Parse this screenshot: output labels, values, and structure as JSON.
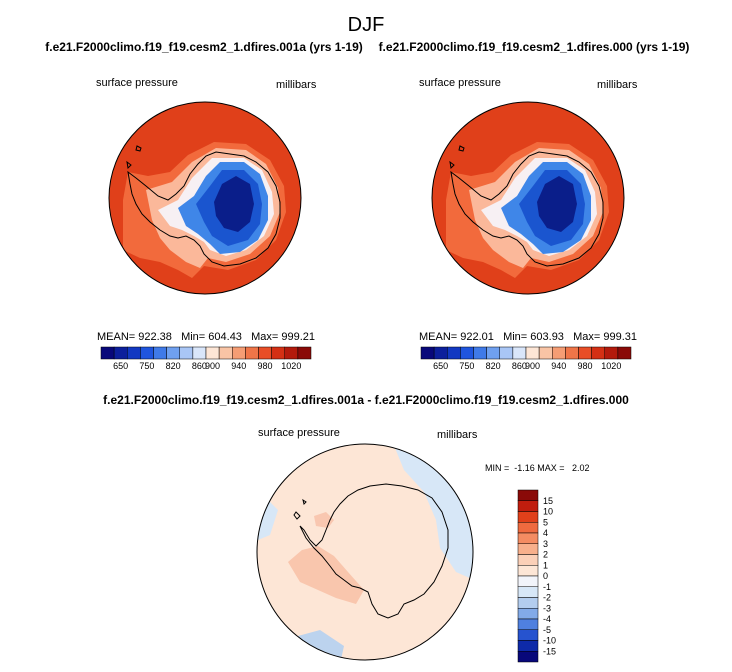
{
  "title": "DJF",
  "panels": [
    {
      "title": "f.e21.F2000climo.f19_f19.cesm2_1.dfires.001a (yrs 1-19)",
      "left_label": "surface pressure",
      "right_label": "millibars",
      "stats": "MEAN= 922.38   Min= 604.43   Max= 999.21"
    },
    {
      "title": "f.e21.F2000climo.f19_f19.cesm2_1.dfires.000 (yrs 1-19)",
      "left_label": "surface pressure",
      "right_label": "millibars",
      "stats": "MEAN= 922.01   Min= 603.93   Max= 999.31"
    },
    {
      "title": "f.e21.F2000climo.f19_f19.cesm2_1.dfires.001a - f.e21.F2000climo.f19_f19.cesm2_1.dfires.000",
      "left_label": "surface pressure",
      "right_label": "millibars",
      "stats": "MIN =  -1.16 MAX =   2.02"
    }
  ],
  "colors": {
    "ocean_pressure": "#e0401a",
    "coast_band": "#f26a3c",
    "inland_band": "#fbb89a",
    "ice_shelf": "#f7f0f3",
    "plateau_low": "#3f86e8",
    "plateau_mid": "#1a55cf",
    "plateau_deep": "#0a1e8a",
    "diff_base": "#fde6d6",
    "diff_pos": "#f8bfa6",
    "diff_neg": "#d7e7f7",
    "diff_neg2": "#bcd3ee"
  },
  "chart_data": [
    {
      "type": "heatmap",
      "title": "f.e21.F2000climo.f19_f19.cesm2_1.dfires.001a (yrs 1-19)",
      "variable": "surface pressure",
      "units": "millibars",
      "mean": 922.38,
      "min": 604.43,
      "max": 999.21,
      "colorbar_labels": [
        "650",
        "750",
        "820",
        "860",
        "900",
        "940",
        "980",
        "1020"
      ],
      "colorbar_colors": [
        "#08087a",
        "#0c1f9c",
        "#1238c2",
        "#1f55de",
        "#3f7ae8",
        "#6fa0f0",
        "#a9c6f6",
        "#d9e6fa",
        "#fde6d6",
        "#f9c4a5",
        "#f59d74",
        "#ef7548",
        "#e84e27",
        "#d43014",
        "#b31a0c",
        "#8a0a08"
      ]
    },
    {
      "type": "heatmap",
      "title": "f.e21.F2000climo.f19_f19.cesm2_1.dfires.000 (yrs 1-19)",
      "variable": "surface pressure",
      "units": "millibars",
      "mean": 922.01,
      "min": 603.93,
      "max": 999.31,
      "colorbar_labels": [
        "650",
        "750",
        "820",
        "860",
        "900",
        "940",
        "980",
        "1020"
      ],
      "colorbar_colors": [
        "#08087a",
        "#0c1f9c",
        "#1238c2",
        "#1f55de",
        "#3f7ae8",
        "#6fa0f0",
        "#a9c6f6",
        "#d9e6fa",
        "#fde6d6",
        "#f9c4a5",
        "#f59d74",
        "#ef7548",
        "#e84e27",
        "#d43014",
        "#b31a0c",
        "#8a0a08"
      ]
    },
    {
      "type": "heatmap",
      "title": "f.e21.F2000climo.f19_f19.cesm2_1.dfires.001a - f.e21.F2000climo.f19_f19.cesm2_1.dfires.000",
      "variable": "surface pressure",
      "units": "millibars",
      "min": -1.16,
      "max": 2.02,
      "colorbar_labels": [
        "15",
        "10",
        "5",
        "4",
        "3",
        "2",
        "1",
        "0",
        "-1",
        "-2",
        "-3",
        "-4",
        "-5",
        "-10",
        "-15"
      ],
      "colorbar_colors": [
        "#8a0a08",
        "#c01d0e",
        "#e0401a",
        "#ef6a3f",
        "#f48c62",
        "#f8b08c",
        "#fbd0b8",
        "#fde6d6",
        "#f2f4fa",
        "#d7e7f7",
        "#b3cdef",
        "#82aae8",
        "#4f80df",
        "#2653cf",
        "#0e2aa8",
        "#08087a"
      ]
    }
  ]
}
